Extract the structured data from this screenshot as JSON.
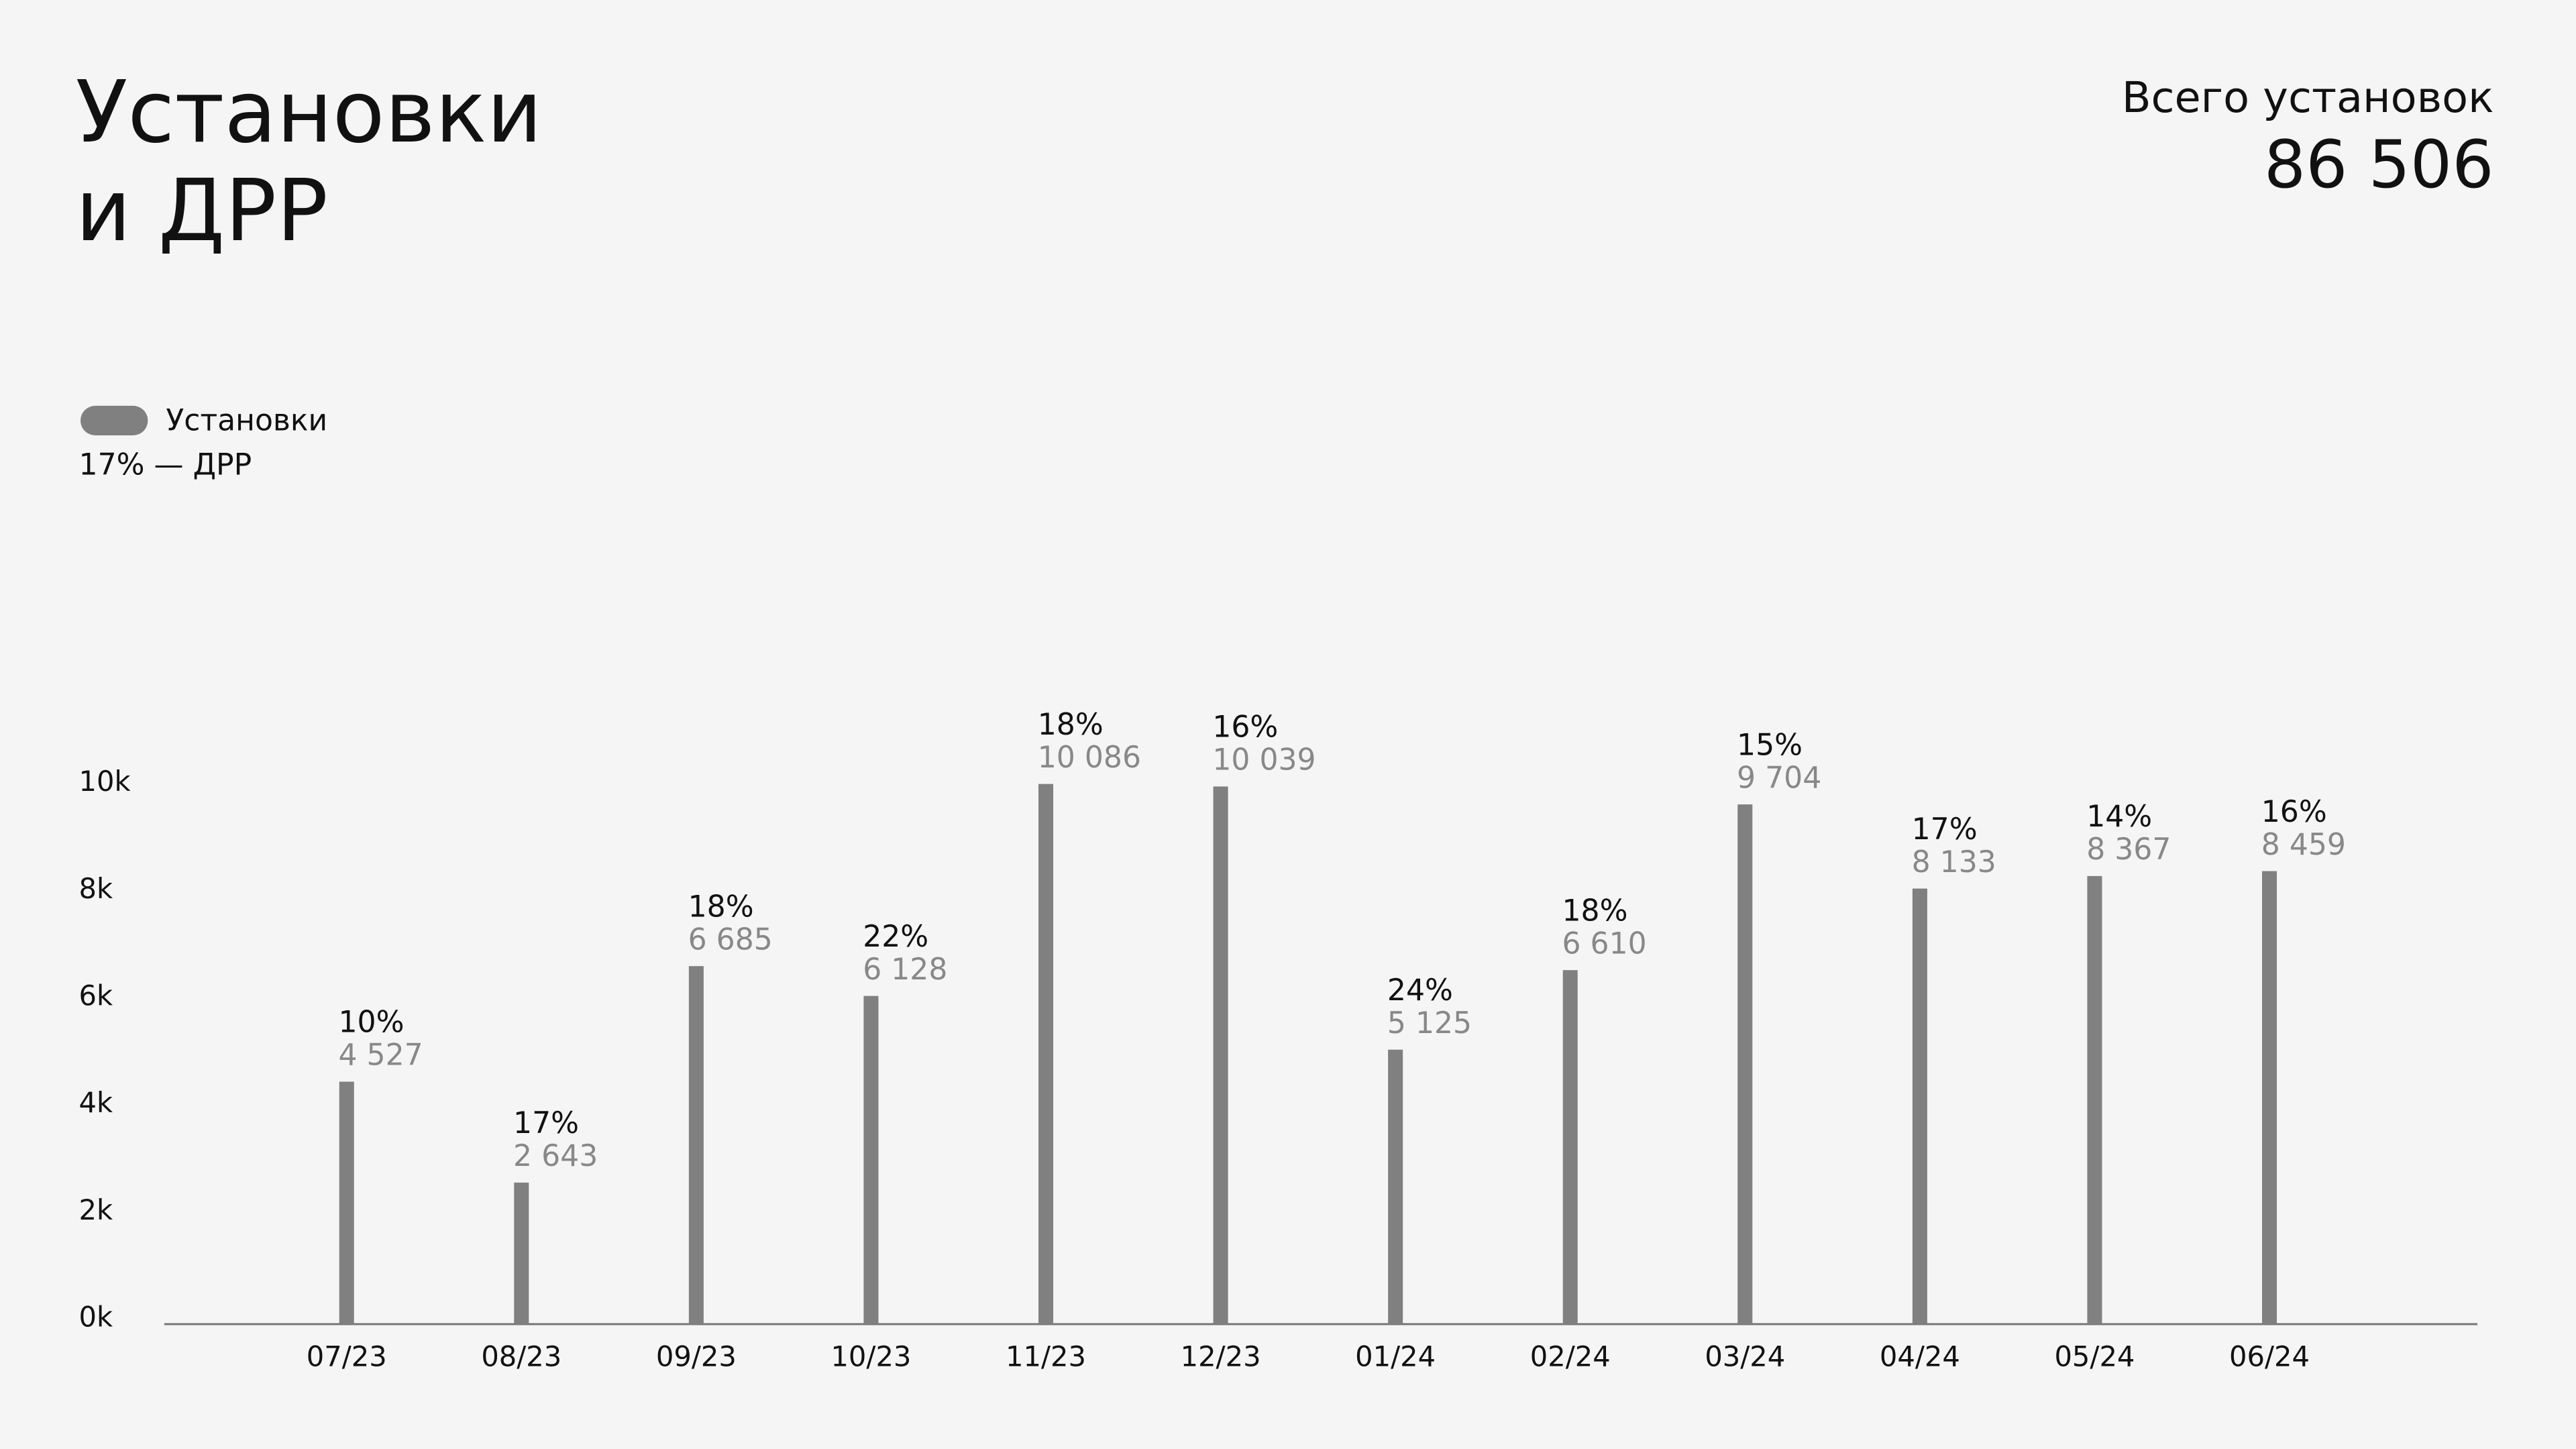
{
  "chart_data": {
    "type": "bar",
    "title": [
      "Установки",
      "и ДРР"
    ],
    "total_title": "Всего установок",
    "total": {
      "value": 86506,
      "label": "86 506"
    },
    "legend_note": "17% — ДРР",
    "categories": [
      "07/23",
      "08/23",
      "09/23",
      "10/23",
      "11/23",
      "12/23",
      "01/24",
      "02/24",
      "03/24",
      "04/24",
      "05/24",
      "06/24"
    ],
    "series": [
      {
        "name": "Установки",
        "color": "#808080",
        "values": [
          4527,
          2643,
          6685,
          6128,
          10086,
          10039,
          5125,
          6610,
          9704,
          8133,
          8367,
          8459
        ],
        "value_labels": [
          "4 527",
          "2 643",
          "6 685",
          "6 128",
          "10 086",
          "10 039",
          "5 125",
          "6 610",
          "9 704",
          "8 133",
          "8 367",
          "8 459"
        ]
      }
    ],
    "drr": {
      "name": "ДРР",
      "values": [
        10,
        17,
        18,
        22,
        18,
        16,
        24,
        18,
        15,
        17,
        14,
        16
      ],
      "value_labels": [
        "10%",
        "17%",
        "18%",
        "22%",
        "18%",
        "16%",
        "24%",
        "18%",
        "15%",
        "17%",
        "14%",
        "16%"
      ]
    },
    "ylim": [
      0,
      10000
    ],
    "yticks": [
      {
        "value": 0,
        "label": "0k"
      },
      {
        "value": 2000,
        "label": "2k"
      },
      {
        "value": 4000,
        "label": "4k"
      },
      {
        "value": 6000,
        "label": "6k"
      },
      {
        "value": 8000,
        "label": "8k"
      },
      {
        "value": 10000,
        "label": "10k"
      }
    ],
    "grid": true
  }
}
